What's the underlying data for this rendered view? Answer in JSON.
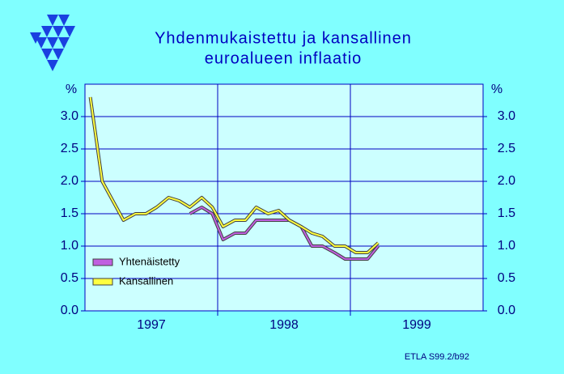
{
  "chart_data": {
    "type": "line",
    "title": [
      "Yhdenmukaistettu ja kansallinen",
      "euroalueen inflaatio"
    ],
    "y_label": "%",
    "source": "ETLA S99.2/b92",
    "x": [
      1997.04,
      1997.13,
      1997.21,
      1997.29,
      1997.38,
      1997.46,
      1997.54,
      1997.63,
      1997.71,
      1997.79,
      1997.88,
      1997.96,
      1998.04,
      1998.13,
      1998.21,
      1998.29,
      1998.38,
      1998.46,
      1998.54,
      1998.63,
      1998.71,
      1998.79,
      1998.88,
      1998.96,
      1999.04,
      1999.13,
      1999.21
    ],
    "series": [
      {
        "name": "Yhtenäistetty",
        "color": "#c060e0",
        "values": [
          null,
          null,
          null,
          null,
          null,
          null,
          null,
          null,
          null,
          1.5,
          1.6,
          1.5,
          1.1,
          1.2,
          1.2,
          1.4,
          1.4,
          1.4,
          1.4,
          1.3,
          1.0,
          1.0,
          0.9,
          0.8,
          0.8,
          0.8,
          1.0
        ]
      },
      {
        "name": "Kansallinen",
        "color": "#ffff40",
        "values": [
          3.3,
          2.0,
          1.7,
          1.4,
          1.5,
          1.5,
          1.6,
          1.75,
          1.7,
          1.6,
          1.75,
          1.6,
          1.3,
          1.4,
          1.4,
          1.6,
          1.5,
          1.55,
          1.4,
          1.3,
          1.2,
          1.15,
          1.0,
          1.0,
          0.9,
          0.9,
          1.05
        ]
      }
    ],
    "xlim": [
      1997,
      2000
    ],
    "xticks": [
      {
        "value": 1997.5,
        "label": "1997"
      },
      {
        "value": 1998.5,
        "label": "1998"
      },
      {
        "value": 1999.5,
        "label": "1999"
      }
    ],
    "x_grid": [
      1998,
      1999
    ],
    "ylim": [
      0,
      3.5
    ],
    "yticks": [
      {
        "value": 0,
        "label": "0.0"
      },
      {
        "value": 0.5,
        "label": "0.5"
      },
      {
        "value": 1,
        "label": "1.0"
      },
      {
        "value": 1.5,
        "label": "1.5"
      },
      {
        "value": 2,
        "label": "2.0"
      },
      {
        "value": 2.5,
        "label": "2.5"
      },
      {
        "value": 3,
        "label": "3.0"
      }
    ],
    "grid": true,
    "legend": "lower left"
  }
}
